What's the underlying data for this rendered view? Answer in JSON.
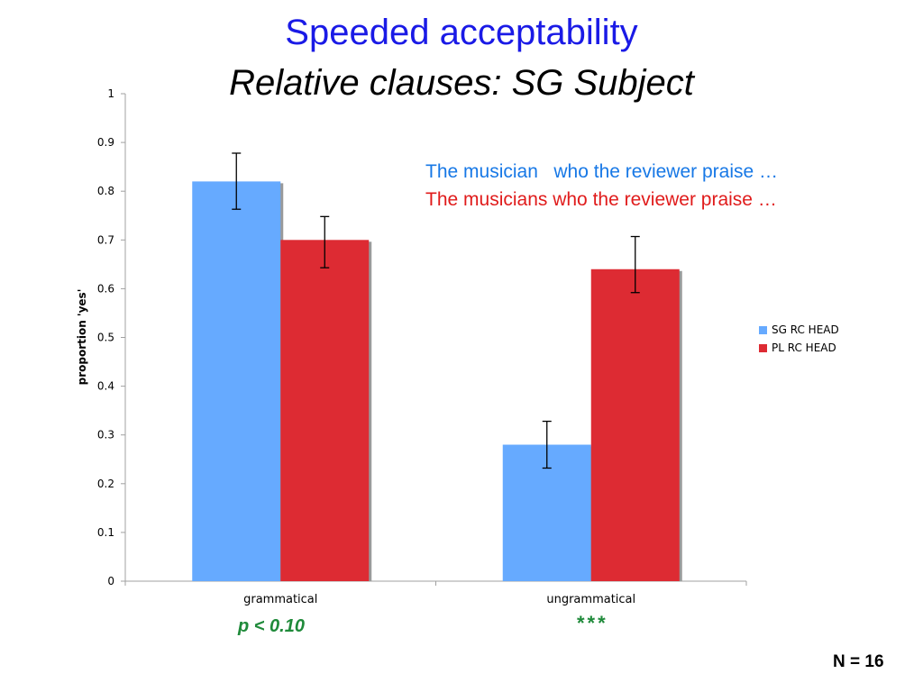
{
  "title": "Speeded acceptability",
  "subtitle": "Relative clauses: SG Subject",
  "annotations": {
    "line1": "The musician   who the reviewer praise …",
    "line2": "The musicians who the reviewer praise …"
  },
  "stats": {
    "grammatical_note": "p < 0.10",
    "ungrammatical_note": "***",
    "n_label": "N = 16"
  },
  "colors": {
    "sg": "#66aaff",
    "pl": "#dd2b33",
    "title": "#1a1ae6",
    "annot_sg": "#1778e6",
    "annot_pl": "#e01b1b",
    "stat_green": "#1f8a3a"
  },
  "chart_data": {
    "type": "bar",
    "categories": [
      "grammatical",
      "ungrammatical"
    ],
    "series": [
      {
        "name": "SG RC HEAD",
        "values": [
          0.82,
          0.28
        ],
        "error_low": [
          0.763,
          0.232
        ],
        "error_high": [
          0.878,
          0.328
        ]
      },
      {
        "name": "PL RC HEAD",
        "values": [
          0.7,
          0.64
        ],
        "error_low": [
          0.643,
          0.592
        ],
        "error_high": [
          0.748,
          0.707
        ]
      }
    ],
    "ylabel": "proportion 'yes'",
    "xlabel": "",
    "ylim": [
      0,
      1
    ],
    "yticks": [
      0,
      0.1,
      0.2,
      0.3,
      0.4,
      0.5,
      0.6,
      0.7,
      0.8,
      0.9,
      1
    ],
    "ytick_labels": [
      "0",
      "0.1",
      "0.2",
      "0.3",
      "0.4",
      "0.5",
      "0.6",
      "0.7",
      "0.8",
      "0.9",
      "1"
    ],
    "grid": false,
    "legend_position": "right"
  }
}
